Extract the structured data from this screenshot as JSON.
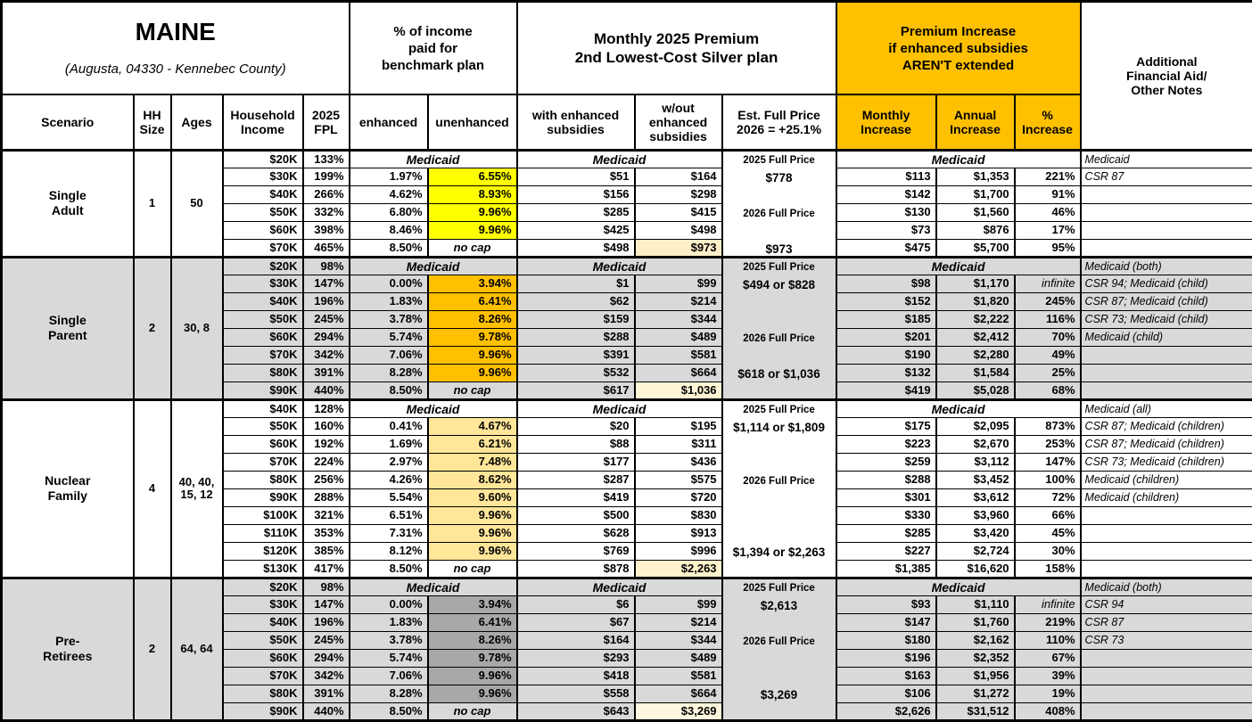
{
  "header": {
    "title": "MAINE",
    "subtitle": "(Augusta, 04330 - Kennebec County)",
    "pct_income_header": "% of income\npaid for\nbenchmark plan",
    "premium_header": "Monthly 2025 Premium\n2nd Lowest-Cost Silver plan",
    "increase_header": "Premium Increase\nif enhanced subsidies\nAREN'T extended",
    "notes_header": "Additional\nFinancial Aid/\nOther Notes",
    "cols": {
      "scenario": "Scenario",
      "hh_size": "HH\nSize",
      "ages": "Ages",
      "income": "Household\nIncome",
      "fpl": "2025\nFPL",
      "enhanced": "enhanced",
      "unenhanced": "unenhanced",
      "with_sub": "with enhanced\nsubsidies",
      "wout_sub": "w/out\nenhanced\nsubsidies",
      "est_full": "Est. Full Price\n2026 = +25.1%",
      "monthly": "Monthly\nIncrease",
      "annual": "Annual\nIncrease",
      "pct": "%\nIncrease"
    }
  },
  "colors": {
    "header_orange": "#FFC000",
    "band_gray": "#D9D9D9",
    "single_adult_unenhanced": "#FFFF00",
    "single_parent_unenhanced": "#FFC000",
    "nuclear_family_unenhanced": "#FFE699",
    "pre_retirees_unenhanced": "#A8A8A8",
    "highlight_cream": "#FFF1CB"
  },
  "groups": [
    {
      "scenario": "Single\nAdult",
      "hh_size": "1",
      "ages": "50",
      "shaded": false,
      "unenhanced_color": "#FFFF00",
      "highlight_color": "#FFEFC9",
      "medicaid_pct": "Medicaid",
      "medicaid_premium": "Medicaid",
      "medicaid_increase": "Medicaid",
      "full_price": [
        {
          "text": "2025 Full Price",
          "label": true,
          "row": 0
        },
        {
          "text": "$778",
          "label": false,
          "row": 1
        },
        {
          "text": "2026 Full Price",
          "label": true,
          "row": 3
        },
        {
          "text": "$973",
          "label": false,
          "row": 5
        }
      ],
      "rows": [
        {
          "income": "$20K",
          "fpl": "133%",
          "medicaid": true,
          "notes": "Medicaid"
        },
        {
          "income": "$30K",
          "fpl": "199%",
          "enhanced": "1.97%",
          "unenhanced": "6.55%",
          "with_sub": "$51",
          "wout_sub": "$164",
          "monthly": "$113",
          "annual": "$1,353",
          "pct": "221%",
          "notes": "CSR 87"
        },
        {
          "income": "$40K",
          "fpl": "266%",
          "enhanced": "4.62%",
          "unenhanced": "8.93%",
          "with_sub": "$156",
          "wout_sub": "$298",
          "monthly": "$142",
          "annual": "$1,700",
          "pct": "91%",
          "notes": ""
        },
        {
          "income": "$50K",
          "fpl": "332%",
          "enhanced": "6.80%",
          "unenhanced": "9.96%",
          "with_sub": "$285",
          "wout_sub": "$415",
          "monthly": "$130",
          "annual": "$1,560",
          "pct": "46%",
          "notes": ""
        },
        {
          "income": "$60K",
          "fpl": "398%",
          "enhanced": "8.46%",
          "unenhanced": "9.96%",
          "with_sub": "$425",
          "wout_sub": "$498",
          "monthly": "$73",
          "annual": "$876",
          "pct": "17%",
          "notes": ""
        },
        {
          "income": "$70K",
          "fpl": "465%",
          "enhanced": "8.50%",
          "unenhanced": "no cap",
          "nocap": true,
          "with_sub": "$498",
          "wout_sub": "$973",
          "highlight": true,
          "monthly": "$475",
          "annual": "$5,700",
          "pct": "95%",
          "notes": ""
        }
      ]
    },
    {
      "scenario": "Single\nParent",
      "hh_size": "2",
      "ages": "30, 8",
      "shaded": true,
      "unenhanced_color": "#FFC000",
      "highlight_color": "#FFF6D5",
      "medicaid_pct": "Medicaid",
      "medicaid_premium": "Medicaid",
      "medicaid_increase": "Medicaid",
      "full_price": [
        {
          "text": "2025 Full Price",
          "label": true,
          "row": 0
        },
        {
          "text": "$494 or $828",
          "label": false,
          "row": 1
        },
        {
          "text": "2026 Full Price",
          "label": true,
          "row": 4
        },
        {
          "text": "$618 or $1,036",
          "label": false,
          "row": 6
        }
      ],
      "rows": [
        {
          "income": "$20K",
          "fpl": "98%",
          "medicaid": true,
          "notes": "Medicaid (both)"
        },
        {
          "income": "$30K",
          "fpl": "147%",
          "enhanced": "0.00%",
          "unenhanced": "3.94%",
          "with_sub": "$1",
          "wout_sub": "$99",
          "monthly": "$98",
          "annual": "$1,170",
          "pct": "infinite",
          "pct_italic": true,
          "notes": "CSR 94; Medicaid (child)"
        },
        {
          "income": "$40K",
          "fpl": "196%",
          "enhanced": "1.83%",
          "unenhanced": "6.41%",
          "with_sub": "$62",
          "wout_sub": "$214",
          "monthly": "$152",
          "annual": "$1,820",
          "pct": "245%",
          "notes": "CSR 87; Medicaid (child)"
        },
        {
          "income": "$50K",
          "fpl": "245%",
          "enhanced": "3.78%",
          "unenhanced": "8.26%",
          "with_sub": "$159",
          "wout_sub": "$344",
          "monthly": "$185",
          "annual": "$2,222",
          "pct": "116%",
          "notes": "CSR 73; Medicaid (child)"
        },
        {
          "income": "$60K",
          "fpl": "294%",
          "enhanced": "5.74%",
          "unenhanced": "9.78%",
          "with_sub": "$288",
          "wout_sub": "$489",
          "monthly": "$201",
          "annual": "$2,412",
          "pct": "70%",
          "notes": "Medicaid (child)"
        },
        {
          "income": "$70K",
          "fpl": "342%",
          "enhanced": "7.06%",
          "unenhanced": "9.96%",
          "with_sub": "$391",
          "wout_sub": "$581",
          "monthly": "$190",
          "annual": "$2,280",
          "pct": "49%",
          "notes": ""
        },
        {
          "income": "$80K",
          "fpl": "391%",
          "enhanced": "8.28%",
          "unenhanced": "9.96%",
          "with_sub": "$532",
          "wout_sub": "$664",
          "monthly": "$132",
          "annual": "$1,584",
          "pct": "25%",
          "notes": ""
        },
        {
          "income": "$90K",
          "fpl": "440%",
          "enhanced": "8.50%",
          "unenhanced": "no cap",
          "nocap": true,
          "with_sub": "$617",
          "wout_sub": "$1,036",
          "highlight": true,
          "monthly": "$419",
          "annual": "$5,028",
          "pct": "68%",
          "notes": ""
        }
      ]
    },
    {
      "scenario": "Nuclear\nFamily",
      "hh_size": "4",
      "ages": "40, 40,\n15, 12",
      "shaded": false,
      "unenhanced_color": "#FFE699",
      "highlight_color": "#FFF2CC",
      "medicaid_pct": "Medicaid",
      "medicaid_premium": "Medicaid",
      "medicaid_increase": "Medicaid",
      "full_price": [
        {
          "text": "2025 Full Price",
          "label": true,
          "row": 0
        },
        {
          "text": "$1,114 or $1,809",
          "label": false,
          "row": 1
        },
        {
          "text": "2026 Full Price",
          "label": true,
          "row": 4
        },
        {
          "text": "$1,394 or $2,263",
          "label": false,
          "row": 8
        }
      ],
      "rows": [
        {
          "income": "$40K",
          "fpl": "128%",
          "medicaid": true,
          "notes": "Medicaid (all)"
        },
        {
          "income": "$50K",
          "fpl": "160%",
          "enhanced": "0.41%",
          "unenhanced": "4.67%",
          "with_sub": "$20",
          "wout_sub": "$195",
          "monthly": "$175",
          "annual": "$2,095",
          "pct": "873%",
          "notes": "CSR 87; Medicaid (children)"
        },
        {
          "income": "$60K",
          "fpl": "192%",
          "enhanced": "1.69%",
          "unenhanced": "6.21%",
          "with_sub": "$88",
          "wout_sub": "$311",
          "monthly": "$223",
          "annual": "$2,670",
          "pct": "253%",
          "notes": "CSR 87; Medicaid (children)"
        },
        {
          "income": "$70K",
          "fpl": "224%",
          "enhanced": "2.97%",
          "unenhanced": "7.48%",
          "with_sub": "$177",
          "wout_sub": "$436",
          "monthly": "$259",
          "annual": "$3,112",
          "pct": "147%",
          "notes": "CSR 73; Medicaid (children)"
        },
        {
          "income": "$80K",
          "fpl": "256%",
          "enhanced": "4.26%",
          "unenhanced": "8.62%",
          "with_sub": "$287",
          "wout_sub": "$575",
          "monthly": "$288",
          "annual": "$3,452",
          "pct": "100%",
          "notes": "Medicaid (children)"
        },
        {
          "income": "$90K",
          "fpl": "288%",
          "enhanced": "5.54%",
          "unenhanced": "9.60%",
          "with_sub": "$419",
          "wout_sub": "$720",
          "monthly": "$301",
          "annual": "$3,612",
          "pct": "72%",
          "notes": "Medicaid (children)"
        },
        {
          "income": "$100K",
          "fpl": "321%",
          "enhanced": "6.51%",
          "unenhanced": "9.96%",
          "with_sub": "$500",
          "wout_sub": "$830",
          "monthly": "$330",
          "annual": "$3,960",
          "pct": "66%",
          "notes": ""
        },
        {
          "income": "$110K",
          "fpl": "353%",
          "enhanced": "7.31%",
          "unenhanced": "9.96%",
          "with_sub": "$628",
          "wout_sub": "$913",
          "monthly": "$285",
          "annual": "$3,420",
          "pct": "45%",
          "notes": ""
        },
        {
          "income": "$120K",
          "fpl": "385%",
          "enhanced": "8.12%",
          "unenhanced": "9.96%",
          "with_sub": "$769",
          "wout_sub": "$996",
          "monthly": "$227",
          "annual": "$2,724",
          "pct": "30%",
          "notes": ""
        },
        {
          "income": "$130K",
          "fpl": "417%",
          "enhanced": "8.50%",
          "unenhanced": "no cap",
          "nocap": true,
          "with_sub": "$878",
          "wout_sub": "$2,263",
          "highlight": true,
          "monthly": "$1,385",
          "annual": "$16,620",
          "pct": "158%",
          "notes": ""
        }
      ]
    },
    {
      "scenario": "Pre-\nRetirees",
      "hh_size": "2",
      "ages": "64, 64",
      "shaded": true,
      "unenhanced_color": "#A8A8A8",
      "highlight_color": "#FFF7DF",
      "medicaid_pct": "Medicaid",
      "medicaid_premium": "Medicaid",
      "medicaid_increase": "Medicaid",
      "full_price": [
        {
          "text": "2025 Full Price",
          "label": true,
          "row": 0
        },
        {
          "text": "$2,613",
          "label": false,
          "row": 1
        },
        {
          "text": "2026 Full Price",
          "label": true,
          "row": 3
        },
        {
          "text": "$3,269",
          "label": false,
          "row": 6
        }
      ],
      "rows": [
        {
          "income": "$20K",
          "fpl": "98%",
          "medicaid": true,
          "notes": "Medicaid (both)"
        },
        {
          "income": "$30K",
          "fpl": "147%",
          "enhanced": "0.00%",
          "unenhanced": "3.94%",
          "with_sub": "$6",
          "wout_sub": "$99",
          "monthly": "$93",
          "annual": "$1,110",
          "pct": "infinite",
          "pct_italic": true,
          "notes": "CSR 94"
        },
        {
          "income": "$40K",
          "fpl": "196%",
          "enhanced": "1.83%",
          "unenhanced": "6.41%",
          "with_sub": "$67",
          "wout_sub": "$214",
          "monthly": "$147",
          "annual": "$1,760",
          "pct": "219%",
          "notes": "CSR 87"
        },
        {
          "income": "$50K",
          "fpl": "245%",
          "enhanced": "3.78%",
          "unenhanced": "8.26%",
          "with_sub": "$164",
          "wout_sub": "$344",
          "monthly": "$180",
          "annual": "$2,162",
          "pct": "110%",
          "notes": "CSR 73"
        },
        {
          "income": "$60K",
          "fpl": "294%",
          "enhanced": "5.74%",
          "unenhanced": "9.78%",
          "with_sub": "$293",
          "wout_sub": "$489",
          "monthly": "$196",
          "annual": "$2,352",
          "pct": "67%",
          "notes": ""
        },
        {
          "income": "$70K",
          "fpl": "342%",
          "enhanced": "7.06%",
          "unenhanced": "9.96%",
          "with_sub": "$418",
          "wout_sub": "$581",
          "monthly": "$163",
          "annual": "$1,956",
          "pct": "39%",
          "notes": ""
        },
        {
          "income": "$80K",
          "fpl": "391%",
          "enhanced": "8.28%",
          "unenhanced": "9.96%",
          "with_sub": "$558",
          "wout_sub": "$664",
          "monthly": "$106",
          "annual": "$1,272",
          "pct": "19%",
          "notes": ""
        },
        {
          "income": "$90K",
          "fpl": "440%",
          "enhanced": "8.50%",
          "unenhanced": "no cap",
          "nocap": true,
          "with_sub": "$643",
          "wout_sub": "$3,269",
          "highlight": true,
          "monthly": "$2,626",
          "annual": "$31,512",
          "pct": "408%",
          "notes": ""
        }
      ]
    }
  ]
}
